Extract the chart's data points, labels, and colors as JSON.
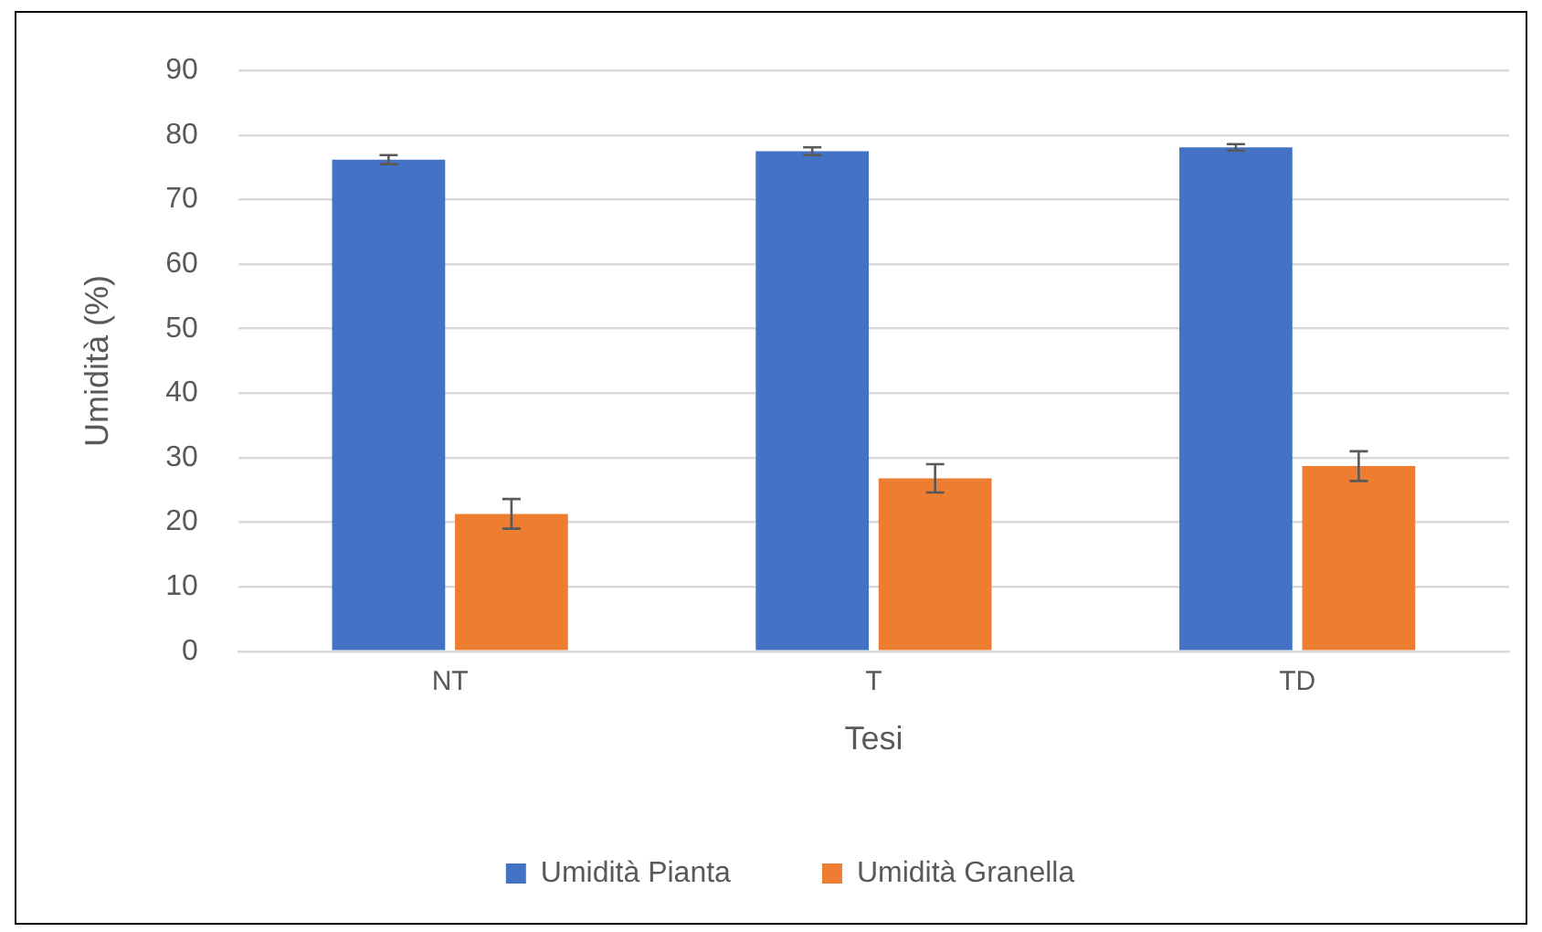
{
  "chart_data": {
    "type": "bar",
    "xlabel": "Tesi",
    "ylabel": "Umidità (%)",
    "categories": [
      "NT",
      "T",
      "TD"
    ],
    "series": [
      {
        "name": "Umidità Pianta",
        "color": "#4472c4",
        "values": [
          76.2,
          77.5,
          78.1
        ],
        "errors": [
          0.7,
          0.6,
          0.5
        ]
      },
      {
        "name": "Umidità Granella",
        "color": "#ed7d31",
        "values": [
          21.3,
          26.8,
          28.7
        ],
        "errors": [
          2.3,
          2.2,
          2.3
        ]
      }
    ],
    "ylim": [
      0,
      90
    ],
    "yticks": [
      0,
      10,
      20,
      30,
      40,
      50,
      60,
      70,
      80,
      90
    ],
    "grid": "y",
    "legend": "bottom"
  }
}
